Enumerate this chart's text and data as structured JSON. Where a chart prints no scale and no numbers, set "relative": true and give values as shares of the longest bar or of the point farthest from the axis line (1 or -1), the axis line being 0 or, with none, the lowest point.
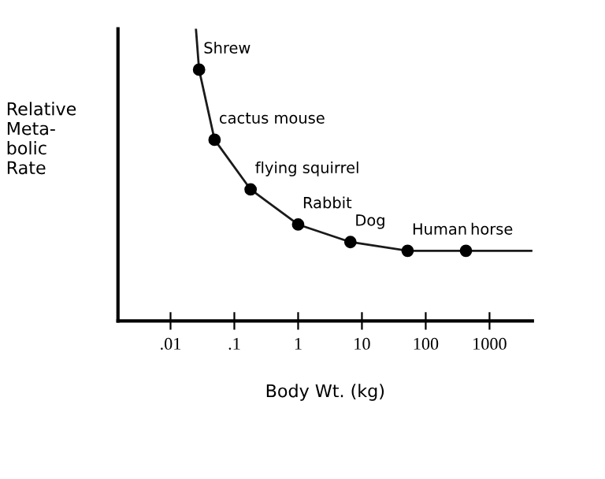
{
  "chart_data": {
    "type": "scatter",
    "xlabel": "Body Wt. (kg)",
    "ylabel": "Relative\nMeta-\nbolic\nRate",
    "relative": true,
    "log": "x",
    "xlim": [
      0.0015,
      4700
    ],
    "xticks": [
      {
        "value": 0.01,
        "label": ".01"
      },
      {
        "value": 0.1,
        "label": ".1"
      },
      {
        "value": 1,
        "label": "1"
      },
      {
        "value": 10,
        "label": "10"
      },
      {
        "value": 100,
        "label": "100"
      },
      {
        "value": 1000,
        "label": "1000"
      }
    ],
    "series": [
      {
        "type": "line",
        "color": "#1a1a1a",
        "marker": "none",
        "x": [
          0.025,
          0.028,
          0.049,
          0.18,
          1,
          6.6,
          52,
          427,
          4700
        ],
        "values": [
          1.0,
          0.86,
          0.62,
          0.45,
          0.33,
          0.27,
          0.24,
          0.24,
          0.24
        ]
      },
      {
        "color": "#000000",
        "marker": "circle",
        "x": [
          0.028,
          0.049,
          0.18,
          1,
          6.6,
          52,
          427
        ],
        "values": [
          0.86,
          0.62,
          0.45,
          0.33,
          0.27,
          0.24,
          0.24
        ]
      }
    ],
    "annotations": [
      {
        "text": "Shrew",
        "x": 0.028,
        "y": 0.86
      },
      {
        "text": "cactus mouse",
        "x": 0.049,
        "y": 0.62
      },
      {
        "text": "flying squirrel",
        "x": 0.18,
        "y": 0.45
      },
      {
        "text": "Rabbit",
        "x": 1,
        "y": 0.33
      },
      {
        "text": "Dog",
        "x": 6.6,
        "y": 0.27
      },
      {
        "text": "Human",
        "x": 52,
        "y": 0.24
      },
      {
        "text": "horse",
        "x": 427,
        "y": 0.24
      }
    ],
    "grid": false,
    "legend": false
  }
}
